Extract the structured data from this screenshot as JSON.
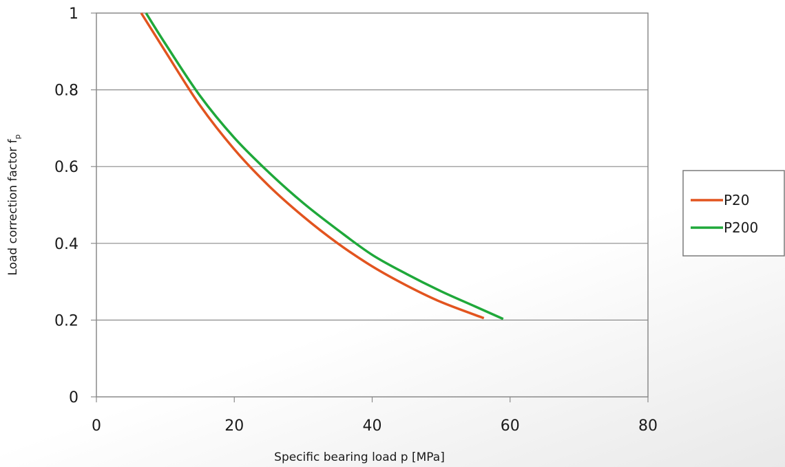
{
  "chart_data": {
    "type": "line",
    "xlabel": "Specific bearing load p [MPa]",
    "ylabel": "Load correction factor f",
    "ylabel_subscript": "p",
    "xlim": [
      0,
      80
    ],
    "ylim": [
      0,
      1
    ],
    "x_ticks": [
      "0",
      "20",
      "40",
      "60",
      "80"
    ],
    "y_ticks": [
      "0",
      "0.2",
      "0.4",
      "0.6",
      "0.8",
      "1"
    ],
    "grid": "horizontal",
    "legend_position": "right",
    "series": [
      {
        "name": "P20",
        "color": "#e2541f",
        "x": [
          6.5,
          10,
          15,
          20,
          25,
          30,
          35,
          40,
          45,
          50,
          56.2
        ],
        "y": [
          1.0,
          0.9,
          0.76,
          0.645,
          0.55,
          0.47,
          0.4,
          0.34,
          0.29,
          0.247,
          0.205
        ]
      },
      {
        "name": "P200",
        "color": "#1fa83a",
        "x": [
          7.2,
          10,
          15,
          20,
          25,
          30,
          35,
          40,
          45,
          50,
          55,
          59
        ],
        "y": [
          1.0,
          0.92,
          0.785,
          0.675,
          0.585,
          0.505,
          0.435,
          0.37,
          0.32,
          0.275,
          0.235,
          0.203
        ]
      }
    ]
  }
}
